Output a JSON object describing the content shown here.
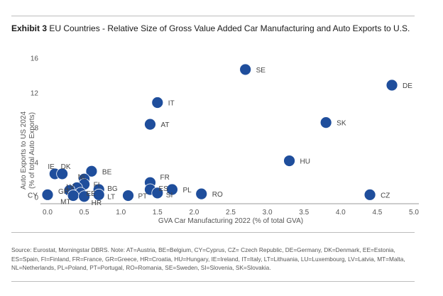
{
  "title_prefix": "Exhibit 3",
  "title_rest": " EU Countries - Relative Size of Gross Value Added Car Manufacturing and Auto Exports to U.S.",
  "source": "Source: Eurostat, Morningstar DBRS. Note: AT=Austria, BE=Belgium, CY=Cyprus, CZ= Czech Republic, DE=Germany, DK=Denmark, EE=Estonia, ES=Spain, FI=Finland, FR=France, GR=Greece, HR=Croatia, HU=Hungary, IE=Ireland, IT=Italy, LT=Lithuania, LU=Luxembourg, LV=Latvia, MT=Malta, NL=Netherlands, PL=Poland, PT=Portugal, RO=Romania, SE=Sweden, SI=Slovenia, SK=Slovakia.",
  "colors": {
    "marker": "#1f4e9c",
    "marker_edge": "#ffffff"
  },
  "chart_data": {
    "type": "scatter",
    "title": "EU Countries - Relative Size of Gross Value Added Car Manufacturing and Auto Exports to U.S.",
    "xlabel": "GVA Car Manufacturing 2022 (% of total GVA)",
    "ylabel": "Auto Exports to US 2024 (% of total Auto Exports)",
    "xlim": [
      0.0,
      5.0
    ],
    "ylim": [
      0,
      16
    ],
    "x_ticks": [
      "0.0",
      "0.5",
      "1.0",
      "1.5",
      "2.0",
      "2.5",
      "3.0",
      "3.5",
      "4.0",
      "4.5",
      "5.0"
    ],
    "y_ticks": [
      "0",
      "4",
      "8",
      "12",
      "16"
    ],
    "grid": false,
    "points": [
      {
        "label": "SE",
        "x": 2.7,
        "y": 14.7
      },
      {
        "label": "DE",
        "x": 4.7,
        "y": 12.9
      },
      {
        "label": "IT",
        "x": 1.5,
        "y": 10.9
      },
      {
        "label": "AT",
        "x": 1.4,
        "y": 8.4
      },
      {
        "label": "SK",
        "x": 3.8,
        "y": 8.6
      },
      {
        "label": "HU",
        "x": 3.3,
        "y": 4.2
      },
      {
        "label": "CZ",
        "x": 4.4,
        "y": 0.3
      },
      {
        "label": "RO",
        "x": 2.1,
        "y": 0.4
      },
      {
        "label": "PL",
        "x": 1.7,
        "y": 0.9
      },
      {
        "label": "FR",
        "x": 1.4,
        "y": 1.7
      },
      {
        "label": "ES",
        "x": 1.4,
        "y": 0.9
      },
      {
        "label": "SI",
        "x": 1.5,
        "y": 0.5
      },
      {
        "label": "PT",
        "x": 1.1,
        "y": 0.2
      },
      {
        "label": "BE",
        "x": 0.6,
        "y": 3.0
      },
      {
        "label": "IE",
        "x": 0.1,
        "y": 2.7
      },
      {
        "label": "DK",
        "x": 0.2,
        "y": 2.7
      },
      {
        "label": "NL",
        "x": 0.5,
        "y": 2.1
      },
      {
        "label": "FI",
        "x": 0.5,
        "y": 1.5
      },
      {
        "label": "LV",
        "x": 0.4,
        "y": 1.1
      },
      {
        "label": "BG",
        "x": 0.7,
        "y": 0.9
      },
      {
        "label": "GR",
        "x": 0.3,
        "y": 0.8
      },
      {
        "label": "EE",
        "x": 0.45,
        "y": 0.5
      },
      {
        "label": "LT",
        "x": 0.7,
        "y": 0.3
      },
      {
        "label": "MT",
        "x": 0.35,
        "y": 0.2
      },
      {
        "label": "HR",
        "x": 0.5,
        "y": 0.1
      },
      {
        "label": "CY",
        "x": 0.0,
        "y": 0.3
      }
    ]
  }
}
